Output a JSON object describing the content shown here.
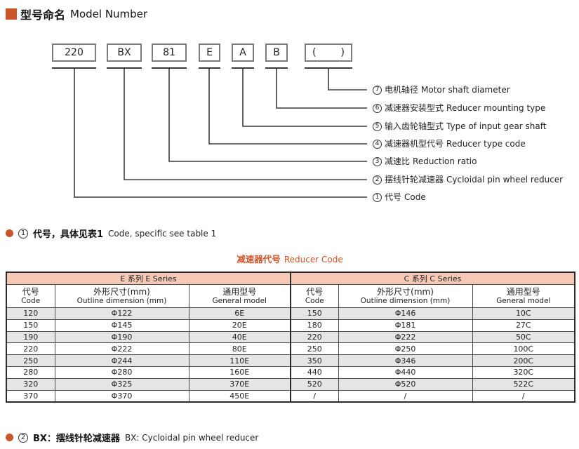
{
  "page": {
    "title_zh": "型号命名",
    "title_en": "Model Number"
  },
  "model_boxes": [
    "220",
    "BX",
    "81",
    "E",
    "A",
    "B",
    "(",
    ")"
  ],
  "diagram_labels": [
    {
      "num": "7",
      "zh": "电机轴径",
      "en": "Motor shaft diameter"
    },
    {
      "num": "6",
      "zh": "减速器安装型式",
      "en": "Reducer mounting type"
    },
    {
      "num": "5",
      "zh": "输入齿轮轴型式",
      "en": "Type of input gear shaft"
    },
    {
      "num": "4",
      "zh": "减速器机型代号",
      "en": "Reducer type code"
    },
    {
      "num": "3",
      "zh": "减速比",
      "en": "Reduction ratio"
    },
    {
      "num": "2",
      "zh": "摆线针轮减速器",
      "en": "Cycloidal pin wheel reducer"
    },
    {
      "num": "1",
      "zh": "代号",
      "en": "Code"
    }
  ],
  "note1": {
    "num": "1",
    "zh": "代号，具体见表1",
    "en": "Code, specific see table 1"
  },
  "table": {
    "title_zh": "减速器代号",
    "title_en": "Reducer Code",
    "groups": [
      {
        "zh": "E 系列",
        "en": "E Series"
      },
      {
        "zh": "C 系列",
        "en": "C Series"
      }
    ],
    "col_headers": [
      {
        "zh": "代号",
        "en": "Code"
      },
      {
        "zh": "外形尺寸(mm)",
        "en": "Outline dimension (mm)"
      },
      {
        "zh": "通用型号",
        "en": "General model"
      }
    ],
    "rows": [
      [
        "120",
        "Φ122",
        "6E",
        "150",
        "Φ146",
        "10C"
      ],
      [
        "150",
        "Φ145",
        "20E",
        "180",
        "Φ181",
        "27C"
      ],
      [
        "190",
        "Φ190",
        "40E",
        "220",
        "Φ222",
        "50C"
      ],
      [
        "220",
        "Φ222",
        "80E",
        "250",
        "Φ250",
        "100C"
      ],
      [
        "250",
        "Φ244",
        "110E",
        "350",
        "Φ346",
        "200C"
      ],
      [
        "280",
        "Φ280",
        "160E",
        "440",
        "Φ440",
        "320C"
      ],
      [
        "320",
        "Φ325",
        "370E",
        "520",
        "Φ520",
        "522C"
      ],
      [
        "370",
        "Φ370",
        "450E",
        "/",
        "/",
        "/"
      ]
    ]
  },
  "note2": {
    "num": "2",
    "zh": "BX：摆线针轮减速器",
    "en": "BX: Cycloidal pin wheel reducer"
  },
  "colors": {
    "accent": "#cc5429",
    "header_bg": "#f6c9b6",
    "row_alt": "#e5e5e5",
    "line": "#3b3b3b"
  }
}
